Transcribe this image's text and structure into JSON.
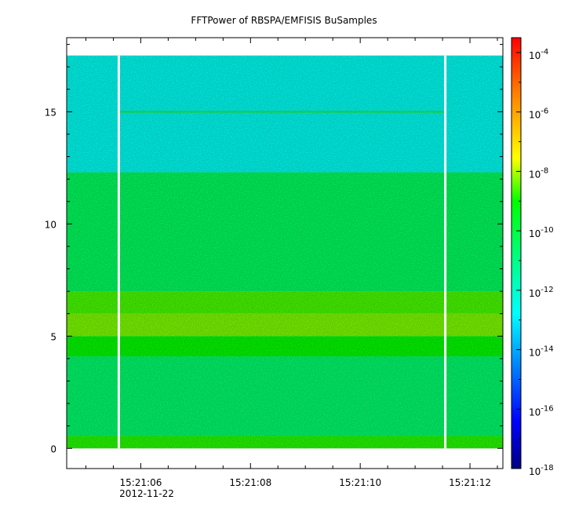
{
  "chart_data": {
    "type": "heatmap",
    "title": "FFTPower of RBSPA/EMFISIS  BuSamples",
    "xlabel": "",
    "ylabel": "",
    "x_ticks": [
      "15:21:06",
      "15:21:08",
      "15:21:10",
      "15:21:12"
    ],
    "x_tick_values": [
      6,
      8,
      10,
      12
    ],
    "x_date_label": "2012-11-22",
    "xlim": [
      4.65,
      12.6
    ],
    "ylim": [
      -0.9,
      18.3
    ],
    "y_ticks": [
      0,
      5,
      10,
      15
    ],
    "data_yrange": [
      0,
      17.5
    ],
    "data_gaps_x": [
      5.6,
      11.55
    ],
    "colorbar": {
      "scale": "log",
      "range": [
        -18,
        -3.5
      ],
      "tick_labels": [
        "10-4",
        "10-6",
        "10-8",
        "10-10",
        "10-12",
        "10-14",
        "10-16",
        "10-18"
      ],
      "tick_exponents": [
        -4,
        -6,
        -8,
        -10,
        -12,
        -14,
        -16,
        -18
      ]
    },
    "bands": [
      {
        "y0": 12.3,
        "y1": 17.5,
        "level": -12.6
      },
      {
        "y0": 7.0,
        "y1": 12.3,
        "level": -10.4
      },
      {
        "y0": 6.0,
        "y1": 7.0,
        "level": -8.6
      },
      {
        "y0": 5.0,
        "y1": 6.0,
        "level": -8.3
      },
      {
        "y0": 4.1,
        "y1": 5.0,
        "level": -9.0
      },
      {
        "y0": 0.55,
        "y1": 4.1,
        "level": -10.6
      },
      {
        "y0": 0.0,
        "y1": 0.55,
        "level": -8.8
      }
    ],
    "line_feature_y": 15.0,
    "grid": false
  }
}
